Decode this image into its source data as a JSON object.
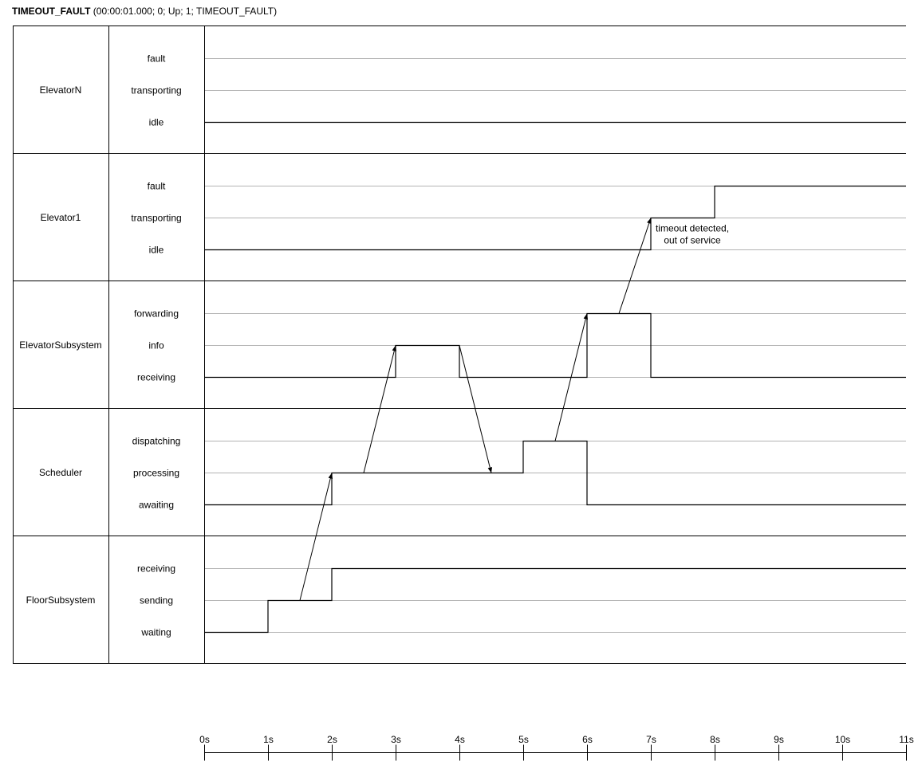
{
  "title": {
    "name": "TIMEOUT_FAULT",
    "params": "(00:00:01.000; 0; Up; 1; TIMEOUT_FAULT)"
  },
  "lanes": [
    {
      "name": "ElevatorN",
      "states": [
        "fault",
        "transporting",
        "idle"
      ],
      "trace": [
        [
          0,
          2
        ],
        [
          11,
          2
        ]
      ]
    },
    {
      "name": "Elevator1",
      "states": [
        "fault",
        "transporting",
        "idle"
      ],
      "trace": [
        [
          0,
          2
        ],
        [
          7,
          2
        ],
        [
          7,
          1
        ],
        [
          8,
          1
        ],
        [
          8,
          0
        ],
        [
          11,
          0
        ]
      ]
    },
    {
      "name": "ElevatorSubsystem",
      "states": [
        "forwarding",
        "info",
        "receiving"
      ],
      "trace": [
        [
          0,
          2
        ],
        [
          3,
          2
        ],
        [
          3,
          1
        ],
        [
          4,
          1
        ],
        [
          4,
          2
        ],
        [
          6,
          2
        ],
        [
          6,
          0
        ],
        [
          7,
          0
        ],
        [
          7,
          2
        ],
        [
          11,
          2
        ]
      ]
    },
    {
      "name": "Scheduler",
      "states": [
        "dispatching",
        "processing",
        "awaiting"
      ],
      "trace": [
        [
          0,
          2
        ],
        [
          2,
          2
        ],
        [
          2,
          1
        ],
        [
          5,
          1
        ],
        [
          5,
          0
        ],
        [
          6,
          0
        ],
        [
          6,
          2
        ],
        [
          11,
          2
        ]
      ]
    },
    {
      "name": "FloorSubsystem",
      "states": [
        "receiving",
        "sending",
        "waiting"
      ],
      "trace": [
        [
          0,
          2
        ],
        [
          1,
          2
        ],
        [
          1,
          1
        ],
        [
          2,
          1
        ],
        [
          2,
          0
        ],
        [
          11,
          0
        ]
      ]
    }
  ],
  "messages": [
    {
      "from": {
        "lane": 4,
        "state": 1,
        "t": 1.5
      },
      "to": {
        "lane": 3,
        "state": 1,
        "t": 2
      }
    },
    {
      "from": {
        "lane": 3,
        "state": 1,
        "t": 2.5
      },
      "to": {
        "lane": 2,
        "state": 1,
        "t": 3
      }
    },
    {
      "from": {
        "lane": 2,
        "state": 1,
        "t": 4
      },
      "to": {
        "lane": 3,
        "state": 1,
        "t": 4.5
      }
    },
    {
      "from": {
        "lane": 3,
        "state": 0,
        "t": 5.5
      },
      "to": {
        "lane": 2,
        "state": 0,
        "t": 6
      }
    },
    {
      "from": {
        "lane": 2,
        "state": 0,
        "t": 6.5
      },
      "to": {
        "lane": 1,
        "state": 1,
        "t": 7
      }
    }
  ],
  "annotations": [
    {
      "lines": [
        "timeout detected,",
        "out of service"
      ],
      "t": 7.65,
      "lane": 1
    }
  ],
  "axis": {
    "ticks": [
      "0s",
      "1s",
      "2s",
      "3s",
      "4s",
      "5s",
      "6s",
      "7s",
      "8s",
      "9s",
      "10s",
      "11s"
    ]
  },
  "colors": {
    "trace": "#000000",
    "border": "#000000",
    "gridline": "#b3b3b3"
  }
}
